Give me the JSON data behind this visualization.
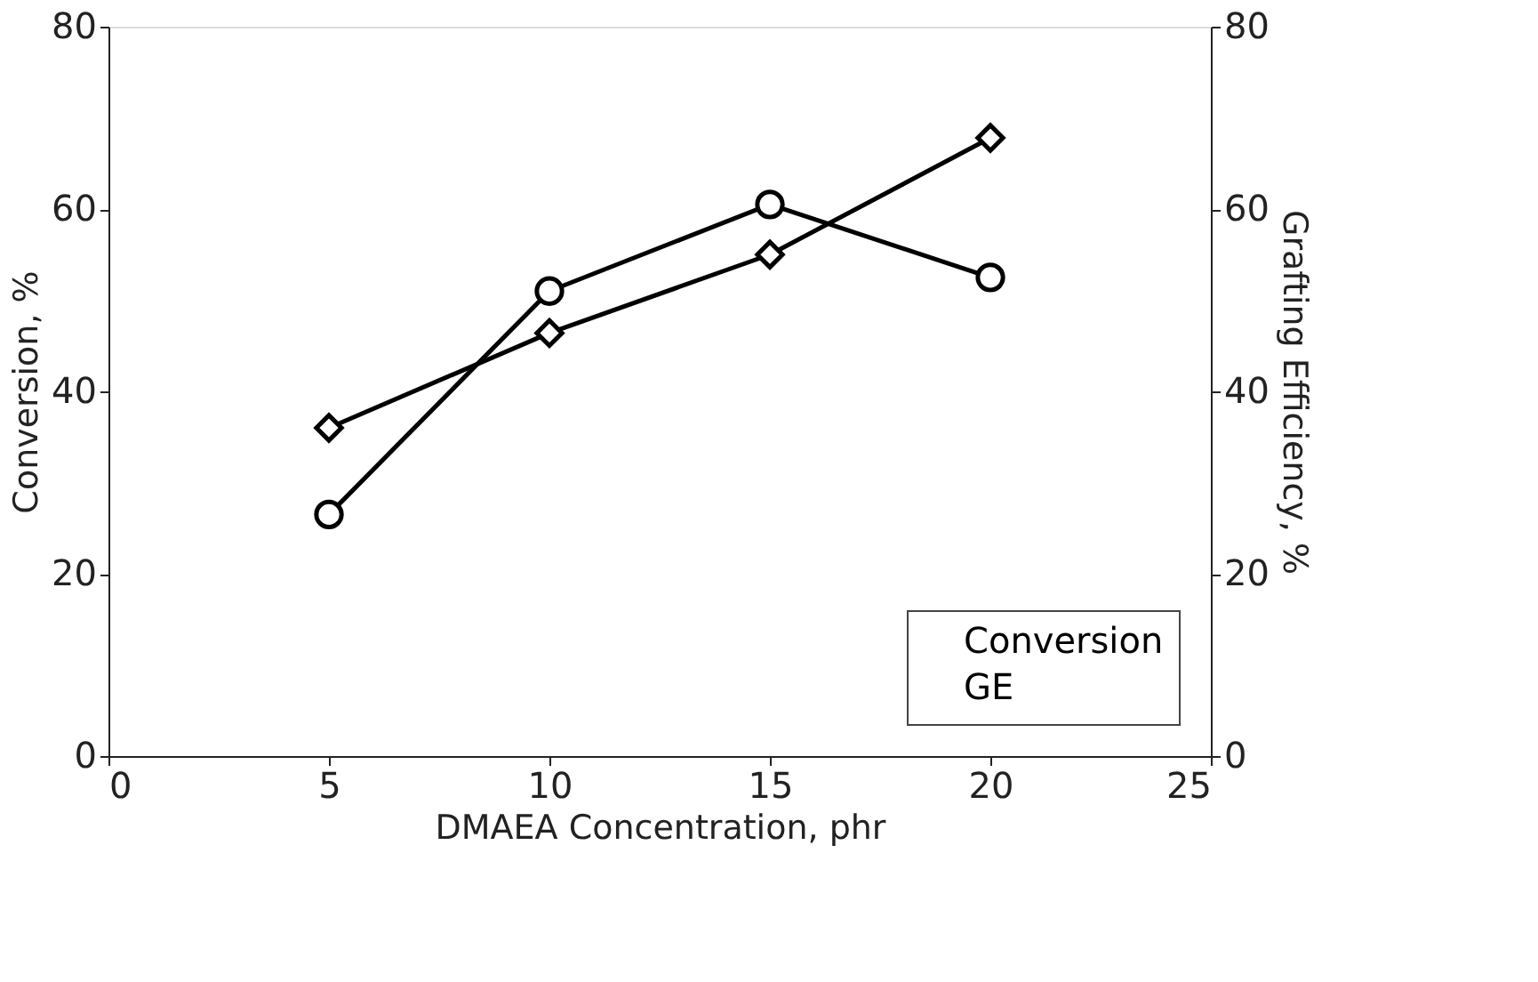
{
  "chart_data": {
    "type": "line",
    "xlabel": "DMAEA Concentration, phr",
    "ylabel": "Conversion, %",
    "y2label": "Grafting Efficiency, %",
    "x": [
      5,
      10,
      15,
      20
    ],
    "series": [
      {
        "name": "Conversion",
        "color": "#000000",
        "marker": "diamond",
        "values": [
          36,
          46.4,
          55,
          67.8
        ]
      },
      {
        "name": "GE",
        "color": "#000000",
        "marker": "circle",
        "axis": "y2",
        "values": [
          26.5,
          51,
          60.5,
          52.5
        ]
      }
    ],
    "xlim": [
      0,
      25
    ],
    "xticks": [
      0,
      5,
      10,
      15,
      20,
      25
    ],
    "ylim": [
      0,
      80
    ],
    "yticks": [
      0,
      20,
      40,
      60,
      80
    ],
    "y2lim": [
      0,
      80
    ],
    "y2ticks": [
      0,
      20,
      40,
      60,
      80
    ],
    "grid": false,
    "legend": "bottom right"
  }
}
